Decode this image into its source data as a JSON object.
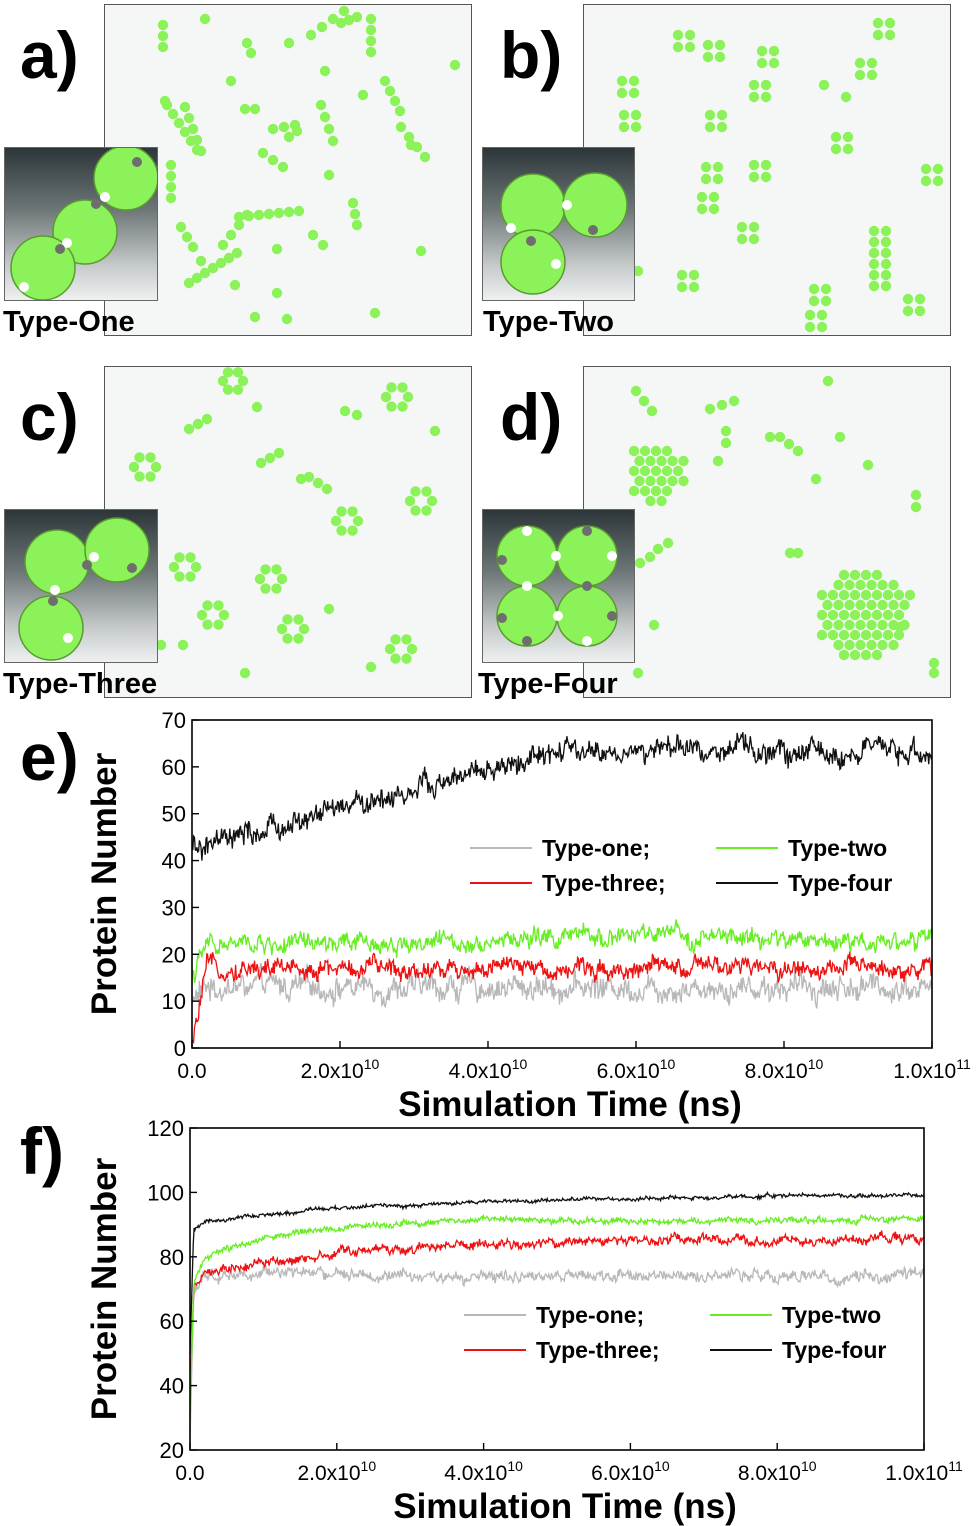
{
  "panels": {
    "a": {
      "letter": "a)",
      "inset_label": "Type-One"
    },
    "b": {
      "letter": "b)",
      "inset_label": "Type-Two"
    },
    "c": {
      "letter": "c)",
      "inset_label": "Type-Three"
    },
    "d": {
      "letter": "d)",
      "inset_label": "Type-Four"
    },
    "e": {
      "letter": "e)"
    },
    "f": {
      "letter": "f)"
    }
  },
  "colors": {
    "particle": "#8cf25a",
    "type_one": "#b8b8b8",
    "type_two": "#66ee22",
    "type_three": "#ee1111",
    "type_four": "#111111",
    "patch_white": "#ffffff",
    "patch_grey": "#6e6e6e"
  },
  "chart_data": [
    {
      "panel": "e",
      "type": "line",
      "xlabel": "Simulation Time (ns)",
      "ylabel": "Protein Number",
      "xlim": [
        0,
        100000000000.0
      ],
      "ylim": [
        0,
        70
      ],
      "x_ticks": [
        {
          "v": 0,
          "m": "0.0",
          "e": ""
        },
        {
          "v": 20000000000.0,
          "m": "2.0x10",
          "e": "10"
        },
        {
          "v": 40000000000.0,
          "m": "4.0x10",
          "e": "10"
        },
        {
          "v": 60000000000.0,
          "m": "6.0x10",
          "e": "10"
        },
        {
          "v": 80000000000.0,
          "m": "8.0x10",
          "e": "10"
        },
        {
          "v": 100000000000.0,
          "m": "1.0x10",
          "e": "11"
        }
      ],
      "y_ticks": [
        0,
        10,
        20,
        30,
        40,
        50,
        60,
        70
      ],
      "legend": [
        "Type-one;",
        "Type-two",
        "Type-three;",
        "Type-four"
      ],
      "series": [
        {
          "name": "Type-one",
          "color": "#b8b8b8",
          "noise": 2.4,
          "x": [
            0,
            2000000000.0,
            10000000000.0,
            20000000000.0,
            40000000000.0,
            60000000000.0,
            80000000000.0,
            100000000000.0
          ],
          "y": [
            10,
            13,
            13,
            13,
            13,
            13,
            13,
            13
          ]
        },
        {
          "name": "Type-two",
          "color": "#66ee22",
          "noise": 1.8,
          "x": [
            0,
            2000000000.0,
            10000000000.0,
            20000000000.0,
            40000000000.0,
            60000000000.0,
            80000000000.0,
            100000000000.0
          ],
          "y": [
            15,
            22,
            22,
            22,
            23,
            24,
            23,
            23
          ]
        },
        {
          "name": "Type-three",
          "color": "#ee1111",
          "noise": 1.8,
          "x": [
            0,
            2000000000.0,
            10000000000.0,
            20000000000.0,
            40000000000.0,
            60000000000.0,
            80000000000.0,
            100000000000.0
          ],
          "y": [
            0,
            17,
            17,
            17,
            17,
            17,
            17,
            17
          ]
        },
        {
          "name": "Type-four",
          "color": "#111111",
          "noise": 2.2,
          "x": [
            0,
            10000000000.0,
            20000000000.0,
            30000000000.0,
            35000000000.0,
            40000000000.0,
            50000000000.0,
            60000000000.0,
            70000000000.0,
            80000000000.0,
            100000000000.0
          ],
          "y": [
            42,
            46,
            51,
            55,
            57,
            59,
            63,
            63,
            64,
            63,
            63
          ]
        }
      ]
    },
    {
      "panel": "f",
      "type": "line",
      "xlabel": "Simulation Time (ns)",
      "ylabel": "Protein Number",
      "xlim": [
        0,
        100000000000.0
      ],
      "ylim": [
        20,
        120
      ],
      "x_ticks": [
        {
          "v": 0,
          "m": "0.0",
          "e": ""
        },
        {
          "v": 20000000000.0,
          "m": "2.0x10",
          "e": "10"
        },
        {
          "v": 40000000000.0,
          "m": "4.0x10",
          "e": "10"
        },
        {
          "v": 60000000000.0,
          "m": "6.0x10",
          "e": "10"
        },
        {
          "v": 80000000000.0,
          "m": "8.0x10",
          "e": "10"
        },
        {
          "v": 100000000000.0,
          "m": "1.0x10",
          "e": "11"
        }
      ],
      "y_ticks": [
        20,
        40,
        60,
        80,
        100,
        120
      ],
      "legend": [
        "Type-one;",
        "Type-two",
        "Type-three;",
        "Type-four"
      ],
      "series": [
        {
          "name": "Type-one",
          "color": "#b8b8b8",
          "noise": 1.6,
          "x": [
            0,
            500000000.0,
            2000000000.0,
            10000000000.0,
            30000000000.0,
            50000000000.0,
            80000000000.0,
            100000000000.0
          ],
          "y": [
            22,
            68,
            74,
            75,
            74,
            74,
            74,
            74
          ]
        },
        {
          "name": "Type-two",
          "color": "#66ee22",
          "noise": 0.9,
          "x": [
            0,
            500000000.0,
            2000000000.0,
            10000000000.0,
            20000000000.0,
            40000000000.0,
            60000000000.0,
            80000000000.0,
            100000000000.0
          ],
          "y": [
            30,
            72,
            80,
            86,
            89,
            92,
            91,
            91,
            92
          ]
        },
        {
          "name": "Type-three",
          "color": "#ee1111",
          "noise": 1.3,
          "x": [
            0,
            500000000.0,
            2000000000.0,
            10000000000.0,
            20000000000.0,
            40000000000.0,
            60000000000.0,
            80000000000.0,
            100000000000.0
          ],
          "y": [
            35,
            70,
            75,
            78,
            81,
            84,
            85,
            85,
            86
          ]
        },
        {
          "name": "Type-four",
          "color": "#111111",
          "noise": 0.55,
          "x": [
            0,
            500000000.0,
            2000000000.0,
            10000000000.0,
            20000000000.0,
            40000000000.0,
            60000000000.0,
            80000000000.0,
            100000000000.0
          ],
          "y": [
            50,
            88,
            91,
            93,
            95,
            97,
            98,
            99,
            99
          ]
        }
      ]
    }
  ]
}
